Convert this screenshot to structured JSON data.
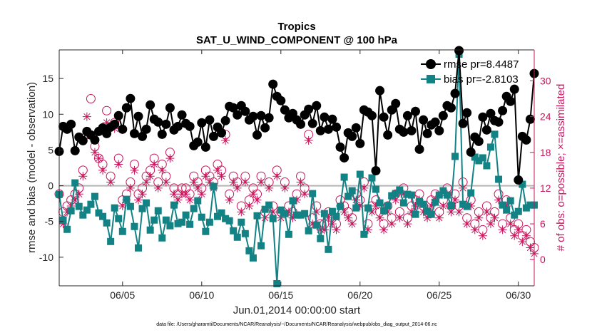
{
  "chart_data": {
    "type": "line",
    "title": "Tropics",
    "subtitle": "SAT_U_WIND_COMPONENT @ 100 hPa",
    "xlabel": "Jun.01,2014 00:00:00 start",
    "ylabel": "rmse and bias (model - observation)",
    "y2label": "# of obs: o=possible; ×=assimilated",
    "footnote": "data file: /Users/gharamti/Documents/NCAR/Reanalysis/~/Documents/NCAR/Reanalysis/webpub/obs_diag_output_2014-06.nc",
    "xlim": [
      1,
      31
    ],
    "ylim": [
      -14,
      19
    ],
    "y2lim": [
      -4.4,
      35.2
    ],
    "x_ticks": [
      5,
      10,
      15,
      20,
      25,
      30
    ],
    "x_tick_labels": [
      "06/05",
      "06/10",
      "06/15",
      "06/20",
      "06/25",
      "06/30"
    ],
    "y_ticks": [
      -10,
      -5,
      0,
      5,
      10,
      15
    ],
    "y2_ticks": [
      0,
      6,
      12,
      18,
      24,
      30
    ],
    "zero_line": 0,
    "colors": {
      "rmse": "#000000",
      "bias": "#128285",
      "obs": "#c8145a",
      "zero": "#b4b4b4",
      "axis": "#262626"
    },
    "series": [
      {
        "name": "rmse",
        "legend": "rmse pr=8.4487",
        "marker": "circle",
        "x": [
          1.0,
          1.25,
          1.5,
          1.75,
          2.0,
          2.25,
          2.5,
          2.75,
          3.0,
          3.25,
          3.5,
          3.75,
          4.0,
          4.25,
          4.5,
          4.75,
          5.0,
          5.25,
          5.5,
          5.75,
          6.0,
          6.25,
          6.5,
          6.75,
          7.0,
          7.25,
          7.5,
          7.75,
          8.0,
          8.25,
          8.5,
          8.75,
          9.0,
          9.25,
          9.5,
          9.75,
          10.0,
          10.25,
          10.5,
          10.75,
          11.0,
          11.25,
          11.5,
          11.75,
          12.0,
          12.25,
          12.5,
          12.75,
          13.0,
          13.25,
          13.5,
          13.75,
          14.0,
          14.25,
          14.5,
          14.75,
          15.0,
          15.25,
          15.5,
          15.75,
          16.0,
          16.25,
          16.5,
          16.75,
          17.0,
          17.25,
          17.5,
          17.75,
          18.0,
          18.25,
          18.5,
          18.75,
          19.0,
          19.25,
          19.5,
          19.75,
          20.0,
          20.25,
          20.5,
          20.75,
          21.0,
          21.25,
          21.5,
          21.75,
          22.0,
          22.25,
          22.5,
          22.75,
          23.0,
          23.25,
          23.5,
          23.75,
          24.0,
          24.25,
          24.5,
          24.75,
          25.0,
          25.25,
          25.5,
          25.75,
          26.0,
          26.25,
          26.5,
          26.75,
          27.0,
          27.25,
          27.5,
          27.75,
          28.0,
          28.25,
          28.5,
          28.75,
          29.0,
          29.25,
          29.5,
          29.75,
          30.0,
          30.25,
          30.5,
          30.75,
          31.0
        ],
        "values": [
          4.8,
          8.3,
          7.9,
          8.6,
          4.9,
          6.8,
          6.3,
          7.6,
          7.1,
          6.4,
          7.6,
          8.1,
          7.3,
          8.2,
          8.6,
          9.8,
          7.9,
          10.9,
          12.2,
          7.3,
          9.7,
          6.9,
          7.9,
          11.3,
          9.3,
          8.9,
          7.2,
          8.6,
          10.9,
          7.8,
          8.3,
          9.9,
          8.7,
          8.3,
          5.6,
          6.1,
          8.8,
          5.4,
          9.2,
          6.9,
          8.2,
          7.4,
          9.1,
          11.1,
          10.9,
          9.9,
          11.2,
          10.4,
          9.2,
          9.7,
          7.1,
          9.8,
          8.1,
          9.5,
          14.2,
          12.5,
          11.9,
          10.6,
          9.5,
          10.1,
          9.2,
          8.6,
          9.9,
          10.7,
          8.7,
          11.2,
          7.7,
          9.6,
          7.9,
          9.3,
          8.2,
          5.4,
          3.9,
          7.4,
          6.9,
          8.1,
          5.9,
          10.6,
          10.3,
          9.8,
          2.1,
          13.3,
          9.6,
          7.1,
          10.6,
          11.5,
          7.9,
          7.5,
          9.8,
          7.7,
          10.4,
          5.1,
          9.2,
          7.3,
          8.5,
          8.9,
          7.7,
          9.8,
          11.2,
          10.9,
          12.9,
          18.9,
          8.7,
          10.2,
          4.7,
          6.8,
          6.2,
          9.6,
          7.8,
          10.1,
          9.1,
          8.9,
          10.5,
          12.5,
          11.8,
          13.5,
          0.8,
          6.9,
          6.4,
          9.3,
          15.7
        ]
      },
      {
        "name": "bias",
        "legend": "bias pr=-2.8103",
        "marker": "square",
        "x": [
          1.0,
          1.25,
          1.5,
          1.75,
          2.0,
          2.25,
          2.5,
          2.75,
          3.0,
          3.25,
          3.5,
          3.75,
          4.0,
          4.25,
          4.5,
          4.75,
          5.0,
          5.25,
          5.5,
          5.75,
          6.0,
          6.25,
          6.5,
          6.75,
          7.0,
          7.25,
          7.5,
          7.75,
          8.0,
          8.25,
          8.5,
          8.75,
          9.0,
          9.25,
          9.5,
          9.75,
          10.0,
          10.25,
          10.5,
          10.75,
          11.0,
          11.25,
          11.5,
          11.75,
          12.0,
          12.25,
          12.5,
          12.75,
          13.0,
          13.25,
          13.5,
          13.75,
          14.0,
          14.25,
          14.5,
          14.75,
          15.0,
          15.25,
          15.5,
          15.75,
          16.0,
          16.25,
          16.5,
          16.75,
          17.0,
          17.25,
          17.5,
          17.75,
          18.0,
          18.25,
          18.5,
          18.75,
          19.0,
          19.25,
          19.5,
          19.75,
          20.0,
          20.25,
          20.5,
          20.75,
          21.0,
          21.25,
          21.5,
          21.75,
          22.0,
          22.25,
          22.5,
          22.75,
          23.0,
          23.25,
          23.5,
          23.75,
          24.0,
          24.25,
          24.5,
          24.75,
          25.0,
          25.25,
          25.5,
          25.75,
          26.0,
          26.25,
          26.5,
          26.75,
          27.0,
          27.25,
          27.5,
          27.75,
          28.0,
          28.25,
          28.5,
          28.75,
          29.0,
          29.25,
          29.5,
          29.75,
          30.0,
          30.25,
          30.5,
          30.75,
          31.0
        ],
        "values": [
          -1.2,
          -4.8,
          -6.1,
          -3.5,
          0.4,
          -2.9,
          -4.1,
          -3.4,
          -2.6,
          -1.5,
          -3.8,
          -4.3,
          -5.2,
          -7.8,
          -3.1,
          -4.6,
          -6.4,
          -1.9,
          -2.9,
          -5.7,
          -8.7,
          -3.2,
          -2.4,
          -6.2,
          -4.8,
          -3.5,
          -7.3,
          -4.8,
          -5.6,
          -2.7,
          -5.3,
          -5.1,
          -4.1,
          -5.4,
          -3.2,
          -2.1,
          -4.4,
          -6.4,
          -5.1,
          -0.1,
          -4.3,
          -3.8,
          -4.6,
          -4.9,
          -6.3,
          -7.2,
          -5.1,
          -6.7,
          -9.1,
          -10.1,
          -4.2,
          -8.4,
          -3.3,
          -2.7,
          -4.6,
          -13.7,
          -3.4,
          -3.9,
          -6.8,
          -2.1,
          -4.1,
          -4.1,
          -3.9,
          -6.3,
          -1.1,
          -5.5,
          -7.4,
          -3.9,
          -8.9,
          -3.6,
          -4.3,
          -2.9,
          1.2,
          -1.5,
          -0.7,
          -3.1,
          1.6,
          -6.8,
          -3.1,
          1.1,
          -0.5,
          -2.4,
          -3.5,
          -2.8,
          -1.4,
          -1.1,
          -0.6,
          -2.4,
          -1.2,
          -1.3,
          -4.0,
          -2.2,
          -2.6,
          -3.6,
          -4.0,
          -2.3,
          -1.3,
          -0.7,
          -1.3,
          -2.8,
          4.1,
          18.4,
          -2.6,
          -2.9,
          -1.0,
          4.0,
          3.5,
          3.9,
          2.8,
          5.4,
          7.2,
          0.9,
          -2.7,
          -3.4,
          -2.1,
          -4.1,
          -3.6,
          0.2,
          -3.1,
          -2.7,
          -2.7
        ]
      },
      {
        "name": "possible",
        "marker": "open-circle",
        "axis": "right",
        "x": [
          1.0,
          1.25,
          1.5,
          1.75,
          2.0,
          2.25,
          2.5,
          2.75,
          3.0,
          3.25,
          3.5,
          3.75,
          4.0,
          4.25,
          4.5,
          4.75,
          5.0,
          5.25,
          5.5,
          5.75,
          6.0,
          6.25,
          6.5,
          6.75,
          7.0,
          7.25,
          7.5,
          7.75,
          8.0,
          8.25,
          8.5,
          8.75,
          9.0,
          9.25,
          9.5,
          9.75,
          10.0,
          10.25,
          10.5,
          10.75,
          11.0,
          11.25,
          11.5,
          11.75,
          12.0,
          12.25,
          12.5,
          12.75,
          13.0,
          13.25,
          13.5,
          13.75,
          14.0,
          14.25,
          14.5,
          14.75,
          15.0,
          15.25,
          15.5,
          15.75,
          16.0,
          16.25,
          16.5,
          16.75,
          17.0,
          17.25,
          17.5,
          17.75,
          18.0,
          18.25,
          18.5,
          18.75,
          19.0,
          19.25,
          19.5,
          19.75,
          20.0,
          20.25,
          20.5,
          20.75,
          21.0,
          21.25,
          21.5,
          21.75,
          22.0,
          22.25,
          22.5,
          22.75,
          23.0,
          23.25,
          23.5,
          23.75,
          24.0,
          24.25,
          24.5,
          24.75,
          25.0,
          25.25,
          25.5,
          25.75,
          26.0,
          26.25,
          26.5,
          26.75,
          27.0,
          27.25,
          27.5,
          27.75,
          28.0,
          28.25,
          28.5,
          28.75,
          29.0,
          29.25,
          29.5,
          29.75,
          30.0,
          30.25,
          30.5,
          30.75,
          31.0
        ],
        "values": [
          11,
          8,
          9,
          10,
          11,
          12,
          15,
          21,
          27,
          19,
          17,
          16,
          25,
          14,
          23,
          17,
          10,
          11,
          13,
          16,
          11,
          12,
          14,
          15,
          17,
          13,
          16,
          14,
          18,
          12,
          11,
          12,
          12,
          11,
          14,
          13,
          12,
          15,
          14,
          13,
          16,
          15,
          21,
          11,
          14,
          13,
          9,
          14,
          10,
          12,
          11,
          14,
          8,
          13,
          9,
          15,
          8,
          13,
          9,
          8,
          11,
          14,
          12,
          21,
          7,
          9,
          6,
          6,
          8,
          7,
          6,
          10,
          9,
          8,
          7,
          11,
          10,
          13,
          6,
          9,
          10,
          8,
          6,
          9,
          7,
          11,
          8,
          12,
          7,
          9,
          10,
          11,
          9,
          8,
          10,
          11,
          8,
          10,
          12,
          9,
          11,
          9,
          13,
          7,
          10,
          6,
          8,
          5,
          9,
          7,
          8,
          11,
          6,
          10,
          7,
          5,
          6,
          4,
          5,
          3,
          2
        ]
      },
      {
        "name": "assimilated",
        "marker": "asterisk",
        "axis": "right",
        "x": [
          1.0,
          1.25,
          1.5,
          1.75,
          2.0,
          2.25,
          2.5,
          2.75,
          3.0,
          3.25,
          3.5,
          3.75,
          4.0,
          4.25,
          4.5,
          4.75,
          5.0,
          5.25,
          5.5,
          5.75,
          6.0,
          6.25,
          6.5,
          6.75,
          7.0,
          7.25,
          7.5,
          7.75,
          8.0,
          8.25,
          8.5,
          8.75,
          9.0,
          9.25,
          9.5,
          9.75,
          10.0,
          10.25,
          10.5,
          10.75,
          11.0,
          11.25,
          11.5,
          11.75,
          12.0,
          12.25,
          12.5,
          12.75,
          13.0,
          13.25,
          13.5,
          13.75,
          14.0,
          14.25,
          14.5,
          14.75,
          15.0,
          15.25,
          15.5,
          15.75,
          16.0,
          16.25,
          16.5,
          16.75,
          17.0,
          17.25,
          17.5,
          17.75,
          18.0,
          18.25,
          18.5,
          18.75,
          19.0,
          19.25,
          19.5,
          19.75,
          20.0,
          20.25,
          20.5,
          20.75,
          21.0,
          21.25,
          21.5,
          21.75,
          22.0,
          22.25,
          22.5,
          22.75,
          23.0,
          23.25,
          23.5,
          23.75,
          24.0,
          24.25,
          24.5,
          24.75,
          25.0,
          25.25,
          25.5,
          25.75,
          26.0,
          26.25,
          26.5,
          26.75,
          27.0,
          27.25,
          27.5,
          27.75,
          28.0,
          28.25,
          28.5,
          28.75,
          29.0,
          29.25,
          29.5,
          29.75,
          30.0,
          30.25,
          30.5,
          30.75,
          31.0
        ],
        "values": [
          11,
          6,
          8,
          9,
          10,
          11,
          14,
          24,
          21,
          18,
          17,
          15,
          23,
          13,
          22,
          16,
          9,
          10,
          12,
          15,
          10,
          11,
          13,
          14,
          16,
          12,
          15,
          13,
          17,
          11,
          10,
          11,
          11,
          10,
          13,
          12,
          11,
          14,
          13,
          12,
          15,
          14,
          20,
          10,
          13,
          12,
          8,
          13,
          9,
          11,
          10,
          13,
          7,
          12,
          8,
          14,
          7,
          12,
          8,
          7,
          10,
          13,
          11,
          20,
          6,
          8,
          5,
          5,
          7,
          6,
          5,
          9,
          8,
          7,
          6,
          10,
          9,
          12,
          5,
          8,
          9,
          7,
          5,
          8,
          6,
          10,
          7,
          11,
          6,
          8,
          9,
          10,
          8,
          7,
          9,
          10,
          7,
          9,
          11,
          8,
          10,
          8,
          12,
          6,
          9,
          5,
          7,
          4,
          8,
          6,
          7,
          10,
          5,
          9,
          6,
          4,
          5,
          3,
          4,
          2,
          1
        ]
      }
    ]
  }
}
